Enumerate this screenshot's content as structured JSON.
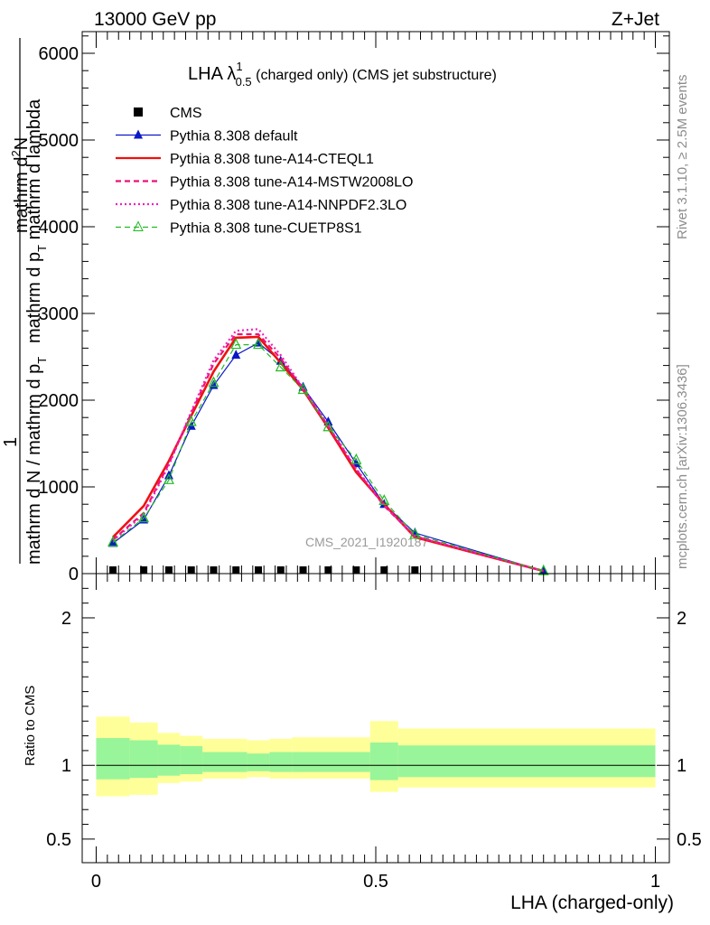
{
  "header": {
    "energy_label": "13000 GeV pp",
    "process_label": "Z+Jet"
  },
  "side_labels": {
    "rivet": "Rivet 3.1.10, ≥ 2.5M events",
    "mcplots": "mcplots.cern.ch [arXiv:1306.3436]"
  },
  "watermark": "CMS_2021_I1920187",
  "plot_title": {
    "prefix": "LHA λ",
    "sup": "1",
    "sub": "0.5",
    "suffix": " (charged only) (CMS jet substructure)"
  },
  "ylabel_top": {
    "line1": "mathrm d",
    "line1_sup": "2",
    "line1_b": "N",
    "line2": "mathrm d p",
    "line2_sub": "T",
    "line2_b": " mathrm d lambda",
    "line3": "1",
    "line4": "mathrm d N / mathrm d p",
    "line4_sub": "T"
  },
  "colors": {
    "pythia_default": "#0a17c8",
    "cteql1": "#ee1111",
    "mstw": "#ee1177",
    "nnpdf": "#ee22bb",
    "cuetp8s1": "#22bb22",
    "band_outer": "#ffff99",
    "band_inner": "#99f599"
  },
  "chart_data": [
    {
      "type": "line",
      "title": "LHA λ^1_0.5 (charged only) (CMS jet substructure)",
      "xlabel": "",
      "ylabel": "1 / (mathrm d N / mathrm d p_T) · mathrm d^2N / (mathrm d p_T mathrm d lambda)",
      "xlim": [
        -0.025,
        1.025
      ],
      "ylim": [
        0,
        6250
      ],
      "yticks": [
        0,
        1000,
        2000,
        3000,
        4000,
        5000,
        6000
      ],
      "ytick_labels": [
        "0",
        "1000",
        "2000",
        "3000",
        "4000",
        "5000",
        "6000"
      ],
      "legend_position": "top-left",
      "series": [
        {
          "name": "CMS",
          "marker": "square",
          "x": [
            0.03,
            0.085,
            0.13,
            0.17,
            0.21,
            0.25,
            0.29,
            0.33,
            0.37,
            0.415,
            0.465,
            0.515,
            0.57
          ],
          "y": [
            0,
            0,
            0,
            0,
            0,
            0,
            0,
            0,
            0,
            0,
            0,
            0,
            0
          ]
        },
        {
          "name": "Pythia 8.308 default",
          "marker": "triangle",
          "x": [
            0.03,
            0.085,
            0.13,
            0.17,
            0.21,
            0.25,
            0.29,
            0.33,
            0.37,
            0.415,
            0.465,
            0.515,
            0.57,
            0.8
          ],
          "y": [
            350,
            620,
            1130,
            1700,
            2170,
            2520,
            2660,
            2450,
            2150,
            1750,
            1270,
            800,
            470,
            30
          ]
        },
        {
          "name": "Pythia 8.308 tune-A14-CTEQL1",
          "marker": "none",
          "x": [
            0.03,
            0.085,
            0.13,
            0.17,
            0.21,
            0.25,
            0.29,
            0.33,
            0.37,
            0.415,
            0.465,
            0.515,
            0.57,
            0.8
          ],
          "y": [
            420,
            780,
            1300,
            1820,
            2330,
            2720,
            2730,
            2430,
            2120,
            1680,
            1170,
            800,
            420,
            30
          ]
        },
        {
          "name": "Pythia 8.308 tune-A14-MSTW2008LO",
          "marker": "none",
          "x": [
            0.03,
            0.085,
            0.13,
            0.17,
            0.21,
            0.25,
            0.29,
            0.33,
            0.37,
            0.415,
            0.465,
            0.515,
            0.57,
            0.8
          ],
          "y": [
            390,
            700,
            1270,
            1850,
            2420,
            2760,
            2760,
            2480,
            2130,
            1700,
            1200,
            780,
            430,
            30
          ]
        },
        {
          "name": "Pythia 8.308 tune-A14-NNPDF2.3LO",
          "marker": "none",
          "x": [
            0.03,
            0.085,
            0.13,
            0.17,
            0.21,
            0.25,
            0.29,
            0.33,
            0.37,
            0.415,
            0.465,
            0.515,
            0.57,
            0.8
          ],
          "y": [
            380,
            680,
            1250,
            1870,
            2460,
            2800,
            2820,
            2520,
            2140,
            1710,
            1210,
            790,
            430,
            30
          ]
        },
        {
          "name": "Pythia 8.308 tune-CUETP8S1",
          "marker": "triangle-open",
          "x": [
            0.03,
            0.085,
            0.13,
            0.17,
            0.21,
            0.25,
            0.29,
            0.33,
            0.37,
            0.415,
            0.465,
            0.515,
            0.57,
            0.8
          ],
          "y": [
            360,
            640,
            1080,
            1750,
            2200,
            2640,
            2640,
            2380,
            2120,
            1690,
            1310,
            840,
            450,
            30
          ]
        }
      ]
    },
    {
      "type": "area",
      "xlabel": "LHA (charged-only)",
      "ylabel": "Ratio to CMS",
      "xlim": [
        -0.025,
        1.025
      ],
      "ylim": [
        0.34,
        2.3
      ],
      "yticks": [
        0.5,
        1,
        2
      ],
      "ytick_labels": [
        "0.5",
        "1",
        "2"
      ],
      "xticks": [
        0,
        0.5,
        1
      ],
      "xtick_labels": [
        "0",
        "0.5",
        "1"
      ],
      "reference": 1.0,
      "bins": [
        {
          "lo": 0.0,
          "hi": 0.06,
          "inner": [
            0.905,
            1.185
          ],
          "outer": [
            0.79,
            1.33
          ]
        },
        {
          "lo": 0.06,
          "hi": 0.11,
          "inner": [
            0.915,
            1.17
          ],
          "outer": [
            0.8,
            1.29
          ]
        },
        {
          "lo": 0.11,
          "hi": 0.15,
          "inner": [
            0.93,
            1.14
          ],
          "outer": [
            0.88,
            1.22
          ]
        },
        {
          "lo": 0.15,
          "hi": 0.19,
          "inner": [
            0.94,
            1.13
          ],
          "outer": [
            0.89,
            1.2
          ]
        },
        {
          "lo": 0.19,
          "hi": 0.27,
          "inner": [
            0.955,
            1.09
          ],
          "outer": [
            0.91,
            1.18
          ]
        },
        {
          "lo": 0.27,
          "hi": 0.31,
          "inner": [
            0.96,
            1.08
          ],
          "outer": [
            0.92,
            1.17
          ]
        },
        {
          "lo": 0.31,
          "hi": 0.35,
          "inner": [
            0.955,
            1.09
          ],
          "outer": [
            0.91,
            1.18
          ]
        },
        {
          "lo": 0.35,
          "hi": 0.49,
          "inner": [
            0.955,
            1.09
          ],
          "outer": [
            0.91,
            1.19
          ]
        },
        {
          "lo": 0.49,
          "hi": 0.54,
          "inner": [
            0.9,
            1.155
          ],
          "outer": [
            0.82,
            1.3
          ]
        },
        {
          "lo": 0.54,
          "hi": 1.0,
          "inner": [
            0.92,
            1.135
          ],
          "outer": [
            0.85,
            1.25
          ]
        }
      ]
    }
  ]
}
